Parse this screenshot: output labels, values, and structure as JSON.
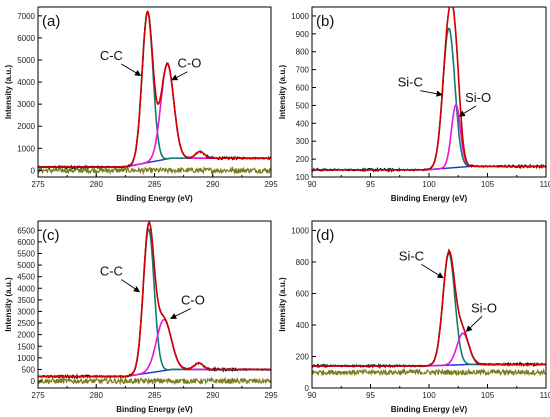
{
  "chart_data": [
    {
      "type": "line",
      "panel_label": "(a)",
      "xlabel": "Binding Energy (eV)",
      "ylabel": "Intensity (a.u.)",
      "xlim": [
        275,
        295
      ],
      "ylim": [
        -300,
        7400
      ],
      "xticks": [
        275,
        280,
        285,
        290,
        295
      ],
      "yticks": [
        0,
        1000,
        2000,
        3000,
        4000,
        5000,
        6000,
        7000
      ],
      "baseline_start": 150,
      "baseline_end": 550,
      "background_level": 0,
      "peaks": [
        {
          "name": "C-C",
          "center": 284.4,
          "height": 6800,
          "fwhm": 1.1
        },
        {
          "name": "C-O",
          "center": 286.1,
          "height": 4300,
          "fwhm": 1.3
        }
      ],
      "extra_peaks": [
        {
          "center": 288.9,
          "height": 300,
          "fwhm": 0.9
        }
      ],
      "annotations": [
        {
          "text": "C-C",
          "x": 281.3,
          "y": 5000,
          "arrow_to": [
            283.8,
            4300
          ]
        },
        {
          "text": "C-O",
          "x": 288.0,
          "y": 4650,
          "arrow_to": [
            286.5,
            4100
          ]
        }
      ]
    },
    {
      "type": "line",
      "panel_label": "(b)",
      "xlabel": "Binding Energy (eV)",
      "ylabel": "Intensity (a.u.)",
      "xlim": [
        90,
        110
      ],
      "ylim": [
        100,
        1050
      ],
      "xticks": [
        90,
        95,
        100,
        105,
        110
      ],
      "yticks": [
        100,
        200,
        300,
        400,
        500,
        600,
        700,
        800,
        900,
        1000
      ],
      "baseline_start": 140,
      "baseline_end": 160,
      "background_level": 0,
      "peaks": [
        {
          "name": "Si-C",
          "center": 101.7,
          "height": 780,
          "fwhm": 1.2
        },
        {
          "name": "Si-O",
          "center": 102.3,
          "height": 350,
          "fwhm": 0.9
        }
      ],
      "extra_peaks": [],
      "annotations": [
        {
          "text": "Si-C",
          "x": 98.4,
          "y": 605,
          "arrow_to": [
            101.1,
            560
          ]
        },
        {
          "text": "Si-O",
          "x": 104.2,
          "y": 520,
          "arrow_to": [
            102.6,
            440
          ]
        }
      ]
    },
    {
      "type": "line",
      "panel_label": "(c)",
      "xlabel": "Binding Energy (eV)",
      "ylabel": "Intensity (a.u.)",
      "xlim": [
        275,
        295
      ],
      "ylim": [
        -300,
        6900
      ],
      "xticks": [
        275,
        280,
        285,
        290,
        295
      ],
      "yticks": [
        0,
        500,
        1000,
        1500,
        2000,
        2500,
        3000,
        3500,
        4000,
        4500,
        5000,
        5500,
        6000,
        6500
      ],
      "baseline_start": 200,
      "baseline_end": 500,
      "background_level": 0,
      "peaks": [
        {
          "name": "C-C",
          "center": 284.5,
          "height": 6200,
          "fwhm": 1.1
        },
        {
          "name": "C-O",
          "center": 285.8,
          "height": 2200,
          "fwhm": 1.5
        }
      ],
      "extra_peaks": [
        {
          "center": 288.8,
          "height": 280,
          "fwhm": 0.9
        }
      ],
      "annotations": [
        {
          "text": "C-C",
          "x": 281.3,
          "y": 4550,
          "arrow_to": [
            283.7,
            3850
          ]
        },
        {
          "text": "C-O",
          "x": 288.3,
          "y": 3300,
          "arrow_to": [
            286.4,
            2700
          ]
        }
      ]
    },
    {
      "type": "line",
      "panel_label": "(d)",
      "xlabel": "Binding Energy (eV)",
      "ylabel": "Intensity (a.u.)",
      "xlim": [
        90,
        110
      ],
      "ylim": [
        0,
        1060
      ],
      "xticks": [
        90,
        95,
        100,
        105,
        110
      ],
      "yticks": [
        0,
        200,
        400,
        600,
        800,
        1000
      ],
      "baseline_start": 140,
      "baseline_end": 150,
      "background_level": 100,
      "peaks": [
        {
          "name": "Si-C",
          "center": 101.7,
          "height": 710,
          "fwhm": 1.2
        },
        {
          "name": "Si-O",
          "center": 102.9,
          "height": 200,
          "fwhm": 1.2
        }
      ],
      "extra_peaks": [],
      "annotations": [
        {
          "text": "Si-C",
          "x": 98.5,
          "y": 810,
          "arrow_to": [
            101.2,
            700
          ]
        },
        {
          "text": "Si-O",
          "x": 104.7,
          "y": 480,
          "arrow_to": [
            103.2,
            360
          ]
        }
      ]
    }
  ],
  "colors": {
    "raw": "#000000",
    "envelope": "#d40000",
    "component_1": "#127a73",
    "component_2": "#e817d4",
    "background_line": "#1a2ed0",
    "residual": "#7b7d1c",
    "axis": "#000000"
  }
}
